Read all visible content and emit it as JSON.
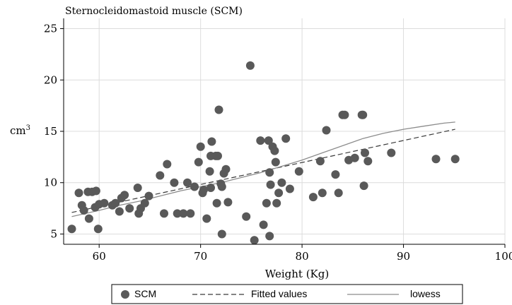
{
  "chart_data": {
    "type": "scatter",
    "title": "Sternocleidomastoid muscle (SCM)",
    "xlabel": "Weight (Kg)",
    "ylabel": "cm",
    "ylabel_sup": "3",
    "xlim": [
      56.5,
      100
    ],
    "ylim": [
      4,
      26
    ],
    "xticks": [
      60,
      70,
      80,
      90,
      100
    ],
    "yticks": [
      5,
      10,
      15,
      20,
      25
    ],
    "grid": true,
    "legend_position": "bottom",
    "legend": [
      {
        "label": "SCM",
        "kind": "marker"
      },
      {
        "label": "Fitted values",
        "kind": "dashed-line"
      },
      {
        "label": "lowess",
        "kind": "solid-line"
      }
    ],
    "colors": {
      "marker": "#595959",
      "fitted": "#3a3a3a",
      "lowess": "#8c8c8c",
      "grid": "#dcdcdc",
      "axis": "#000000"
    },
    "series": [
      {
        "name": "SCM",
        "kind": "scatter",
        "points": [
          [
            57.3,
            5.5
          ],
          [
            58.0,
            9.0
          ],
          [
            58.3,
            7.8
          ],
          [
            58.5,
            7.3
          ],
          [
            58.9,
            9.1
          ],
          [
            59.0,
            6.5
          ],
          [
            59.3,
            9.1
          ],
          [
            59.6,
            7.6
          ],
          [
            59.7,
            9.2
          ],
          [
            59.9,
            5.5
          ],
          [
            60.0,
            7.9
          ],
          [
            60.5,
            8.0
          ],
          [
            61.3,
            7.8
          ],
          [
            61.6,
            8.0
          ],
          [
            62.0,
            7.2
          ],
          [
            62.2,
            8.5
          ],
          [
            62.5,
            8.8
          ],
          [
            63.0,
            7.5
          ],
          [
            63.8,
            9.5
          ],
          [
            63.9,
            7.0
          ],
          [
            64.1,
            7.5
          ],
          [
            64.5,
            8.0
          ],
          [
            64.9,
            8.7
          ],
          [
            66.0,
            10.7
          ],
          [
            66.4,
            7.0
          ],
          [
            66.7,
            11.8
          ],
          [
            67.4,
            10.0
          ],
          [
            67.7,
            7.0
          ],
          [
            68.3,
            7.0
          ],
          [
            68.7,
            10.0
          ],
          [
            69.0,
            7.0
          ],
          [
            69.4,
            9.6
          ],
          [
            69.8,
            12.0
          ],
          [
            70.0,
            13.5
          ],
          [
            70.2,
            9.0
          ],
          [
            70.3,
            9.3
          ],
          [
            70.6,
            6.5
          ],
          [
            70.9,
            11.1
          ],
          [
            71.0,
            9.5
          ],
          [
            71.0,
            12.6
          ],
          [
            71.1,
            14.0
          ],
          [
            71.5,
            12.6
          ],
          [
            71.6,
            8.0
          ],
          [
            71.7,
            12.6
          ],
          [
            71.8,
            17.1
          ],
          [
            72.0,
            9.9
          ],
          [
            72.1,
            9.6
          ],
          [
            72.1,
            5.0
          ],
          [
            72.3,
            10.9
          ],
          [
            72.5,
            11.3
          ],
          [
            72.7,
            8.1
          ],
          [
            74.5,
            6.7
          ],
          [
            74.9,
            21.4
          ],
          [
            75.3,
            4.4
          ],
          [
            75.9,
            14.1
          ],
          [
            76.2,
            5.9
          ],
          [
            76.5,
            8.0
          ],
          [
            76.7,
            14.1
          ],
          [
            76.8,
            11.0
          ],
          [
            76.8,
            4.8
          ],
          [
            76.9,
            9.8
          ],
          [
            77.1,
            13.5
          ],
          [
            77.3,
            13.1
          ],
          [
            77.4,
            12.0
          ],
          [
            77.5,
            8.0
          ],
          [
            77.7,
            9.0
          ],
          [
            78.0,
            10.0
          ],
          [
            78.4,
            14.3
          ],
          [
            78.8,
            9.4
          ],
          [
            79.7,
            11.1
          ],
          [
            81.1,
            8.6
          ],
          [
            81.8,
            12.1
          ],
          [
            82.0,
            9.0
          ],
          [
            82.4,
            15.1
          ],
          [
            83.3,
            10.8
          ],
          [
            83.6,
            9.0
          ],
          [
            84.0,
            16.6
          ],
          [
            84.2,
            16.6
          ],
          [
            84.6,
            12.2
          ],
          [
            85.2,
            12.4
          ],
          [
            85.9,
            16.6
          ],
          [
            86.0,
            16.6
          ],
          [
            86.1,
            9.7
          ],
          [
            86.2,
            12.9
          ],
          [
            86.5,
            12.1
          ],
          [
            88.8,
            12.9
          ],
          [
            93.2,
            12.3
          ],
          [
            95.1,
            12.3
          ]
        ]
      },
      {
        "name": "Fitted values",
        "kind": "line",
        "points": [
          [
            57.3,
            7.1
          ],
          [
            95.1,
            15.2
          ]
        ]
      },
      {
        "name": "lowess",
        "kind": "line",
        "points": [
          [
            57.3,
            6.7
          ],
          [
            60,
            7.3
          ],
          [
            62,
            7.8
          ],
          [
            64,
            8.2
          ],
          [
            66,
            8.7
          ],
          [
            68,
            9.2
          ],
          [
            70,
            9.6
          ],
          [
            72,
            10.0
          ],
          [
            74,
            10.5
          ],
          [
            76,
            11.0
          ],
          [
            78,
            11.6
          ],
          [
            80,
            12.2
          ],
          [
            82,
            12.9
          ],
          [
            84,
            13.6
          ],
          [
            86,
            14.3
          ],
          [
            88,
            14.8
          ],
          [
            90,
            15.2
          ],
          [
            92,
            15.5
          ],
          [
            94,
            15.8
          ],
          [
            95.1,
            15.9
          ]
        ]
      }
    ]
  }
}
